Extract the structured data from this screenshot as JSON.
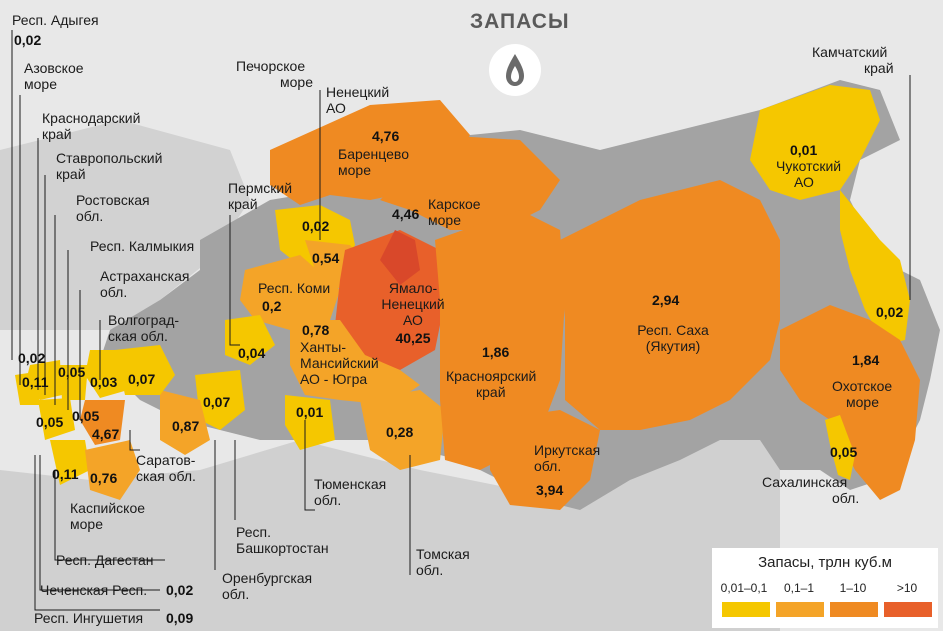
{
  "title": "ЗАПАСЫ",
  "title_icon": "gas-flame-icon",
  "legend": {
    "title": "Запасы, трлн куб.м",
    "items": [
      {
        "label": "0,01–0,1",
        "color": "#f5c700"
      },
      {
        "label": "0,1–1",
        "color": "#f4a428"
      },
      {
        "label": "1–10",
        "color": "#ef8a22"
      },
      {
        "label": ">10",
        "color": "#e8602a"
      }
    ]
  },
  "regions": {
    "adygea": {
      "name": "Респ. Адыгея",
      "value": "0,02"
    },
    "azov": {
      "name": "Азовское море"
    },
    "krasnodar": {
      "name": "Краснодарский край",
      "value": "0,02"
    },
    "stavropol": {
      "name": "Ставропольский край",
      "value": "0,05"
    },
    "rostov": {
      "name": "Ростовская обл.",
      "value": "0,11"
    },
    "kalmykia": {
      "name": "Респ. Калмыкия",
      "value": "0,05"
    },
    "astrakhan": {
      "name": "Астраханская обл.",
      "value": "4,67"
    },
    "volgograd": {
      "name": "Волгоградская обл.",
      "value": "0,03"
    },
    "saratov": {
      "name": "Саратовская обл.",
      "value": "0,07"
    },
    "dagestan": {
      "name": "Респ. Дагестан",
      "value": "0,11"
    },
    "caspian": {
      "name": "Каспийское море",
      "value": "0,76"
    },
    "chechnya": {
      "name": "Чеченская Респ.",
      "value": "0,02"
    },
    "ingushetia": {
      "name": "Респ. Ингушетия",
      "value": "0,09"
    },
    "orenburg": {
      "name": "Оренбургская обл.",
      "value": "0,87"
    },
    "bashkortostan": {
      "name": "Респ. Башкортостан",
      "value": "0,07"
    },
    "perm": {
      "name": "Пермский край",
      "value": "0,04"
    },
    "komi": {
      "name": "Респ. Коми",
      "value": "0,2"
    },
    "pechora": {
      "name": "Печорское море",
      "value": "0,02"
    },
    "nenets": {
      "name": "Ненецкий АО",
      "value": "0,54"
    },
    "barents": {
      "name": "Баренцево море",
      "value": "4,76"
    },
    "kara": {
      "name": "Карское море",
      "value": "4,46"
    },
    "yamal": {
      "name": "Ямало-Ненецкий АО",
      "value": "40,25"
    },
    "khmao": {
      "name": "Ханты-Мансийский АО - Югра",
      "value": "0,78"
    },
    "tyumen": {
      "name": "Тюменская обл.",
      "value": "0,01"
    },
    "tomsk": {
      "name": "Томская обл.",
      "value": "0,28"
    },
    "krasnoyarsk": {
      "name": "Красноярский край",
      "value": "1,86"
    },
    "irkutsk": {
      "name": "Иркутская обл.",
      "value": "3,94"
    },
    "sakha": {
      "name": "Респ. Саха (Якутия)",
      "value": "2,94"
    },
    "chukotka": {
      "name": "Чукотский АО",
      "value": "0,01"
    },
    "kamchatka": {
      "name": "Камчатский край",
      "value": "0,02"
    },
    "okhotsk": {
      "name": "Охотское море",
      "value": "1,84"
    },
    "sakhalin": {
      "name": "Сахалинская обл.",
      "value": "0,05"
    }
  },
  "label_text": {
    "adygea": "Респ. Адыгея",
    "azov_1": "Азовское",
    "azov_2": "море",
    "krasnodar_1": "Краснодарский",
    "krasnodar_2": "край",
    "stavropol_1": "Ставропольский",
    "stavropol_2": "край",
    "rostov_1": "Ростовская",
    "rostov_2": "обл.",
    "kalmykia": "Респ. Калмыкия",
    "astrakhan_1": "Астраханская",
    "astrakhan_2": "обл.",
    "volgograd_1": "Волгоград-",
    "volgograd_2": "ская обл.",
    "saratov_1": "Саратов-",
    "saratov_2": "ская обл.",
    "dagestan": "Респ. Дагестан",
    "caspian_1": "Каспийское",
    "caspian_2": "море",
    "chechnya": "Чеченская Респ.",
    "ingushetia": "Респ. Ингушетия",
    "orenburg_1": "Оренбургская",
    "orenburg_2": "обл.",
    "bashkortostan_1": "Респ.",
    "bashkortostan_2": "Башкортостан",
    "perm_1": "Пермский",
    "perm_2": "край",
    "komi": "Респ. Коми",
    "pechora_1": "Печорское",
    "pechora_2": "море",
    "nenets_1": "Ненецкий",
    "nenets_2": "АО",
    "barents_1": "Баренцево",
    "barents_2": "море",
    "kara_1": "Карское",
    "kara_2": "море",
    "yamal_1": "Ямало-",
    "yamal_2": "Ненецкий",
    "yamal_3": "АО",
    "khmao_1": "Ханты-",
    "khmao_2": "Мансийский",
    "khmao_3": "АО - Югра",
    "tyumen_1": "Тюменская",
    "tyumen_2": "обл.",
    "tomsk_1": "Томская",
    "tomsk_2": "обл.",
    "krasnoyarsk_1": "Красноярский",
    "krasnoyarsk_2": "край",
    "irkutsk_1": "Иркутская",
    "irkutsk_2": "обл.",
    "sakha_1": "Респ. Саха",
    "sakha_2": "(Якутия)",
    "chukotka_1": "Чукотский",
    "chukotka_2": "АО",
    "kamchatka_1": "Камчатский",
    "kamchatka_2": "край",
    "okhotsk_1": "Охотское",
    "okhotsk_2": "море",
    "sakhalin_1": "Сахалинская",
    "sakhalin_2": "обл."
  }
}
